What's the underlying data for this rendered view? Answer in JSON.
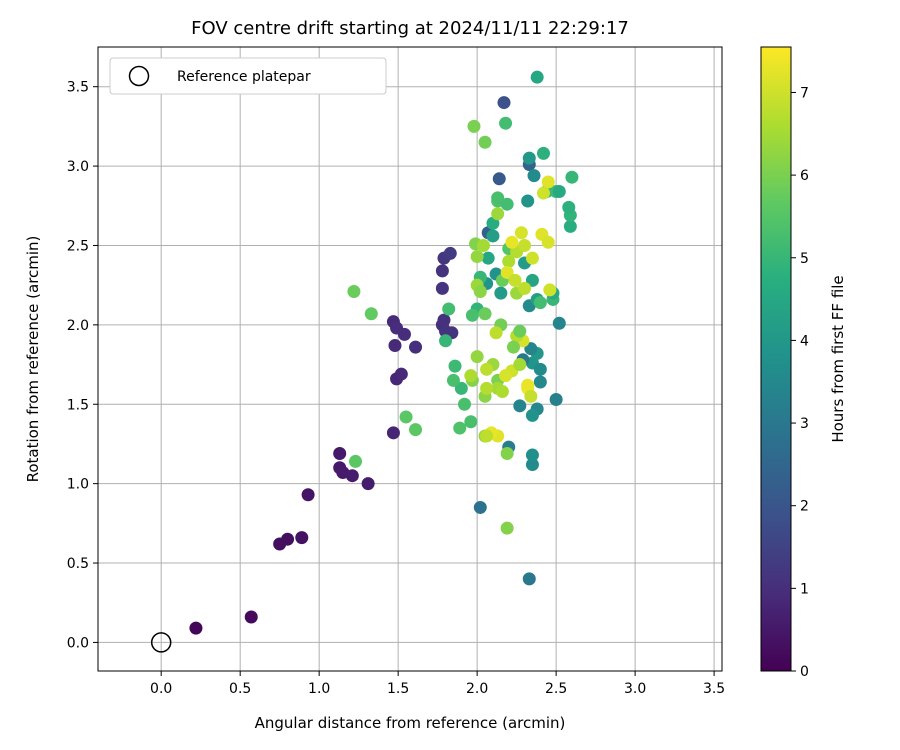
{
  "chart_data": {
    "type": "scatter",
    "title": "FOV centre drift starting at 2024/11/11 22:29:17",
    "xlabel": "Angular distance from reference (arcmin)",
    "ylabel": "Rotation from reference (arcmin)",
    "xlim": [
      -0.4,
      3.55
    ],
    "ylim": [
      -0.18,
      3.75
    ],
    "xticks": [
      "0.0",
      "0.5",
      "1.0",
      "1.5",
      "2.0",
      "2.5",
      "3.0",
      "3.5"
    ],
    "yticks": [
      "0.0",
      "0.5",
      "1.0",
      "1.5",
      "2.0",
      "2.5",
      "3.0",
      "3.5"
    ],
    "grid": true,
    "legend": {
      "placement": "top-left",
      "entries": [
        "Reference platepar"
      ]
    },
    "reference_point": {
      "x": 0.0,
      "y": 0.0
    },
    "colorbar": {
      "label": "Hours from first FF file",
      "colormap": "viridis",
      "range": [
        0,
        7.55
      ],
      "ticks": [
        "0",
        "1",
        "2",
        "3",
        "4",
        "5",
        "6",
        "7"
      ]
    },
    "series": [
      {
        "points": [
          [
            0.22,
            0.09,
            0.1
          ],
          [
            0.57,
            0.16,
            0.2
          ],
          [
            0.75,
            0.62,
            0.3
          ],
          [
            0.8,
            0.65,
            0.3
          ],
          [
            0.89,
            0.66,
            0.35
          ],
          [
            0.93,
            0.93,
            0.4
          ],
          [
            1.13,
            1.19,
            0.5
          ],
          [
            1.13,
            1.1,
            0.5
          ],
          [
            1.15,
            1.07,
            0.55
          ],
          [
            1.21,
            1.05,
            0.6
          ],
          [
            1.31,
            1.0,
            0.6
          ],
          [
            1.47,
            1.32,
            0.8
          ],
          [
            1.49,
            1.66,
            0.8
          ],
          [
            1.52,
            1.69,
            0.85
          ],
          [
            1.48,
            1.87,
            0.9
          ],
          [
            1.47,
            2.02,
            0.9
          ],
          [
            1.49,
            1.98,
            0.95
          ],
          [
            1.54,
            1.94,
            0.95
          ],
          [
            1.61,
            1.86,
            1.0
          ],
          [
            1.78,
            2.0,
            1.0
          ],
          [
            1.79,
            2.03,
            1.05
          ],
          [
            1.8,
            1.96,
            1.1
          ],
          [
            1.84,
            1.95,
            1.1
          ],
          [
            1.78,
            2.23,
            1.15
          ],
          [
            1.78,
            2.34,
            1.1
          ],
          [
            1.79,
            2.42,
            1.2
          ],
          [
            1.83,
            2.45,
            1.3
          ],
          [
            2.17,
            3.4,
            1.9
          ],
          [
            2.14,
            2.92,
            2.1
          ],
          [
            2.07,
            2.58,
            2.3
          ],
          [
            2.33,
            3.01,
            2.4
          ],
          [
            2.02,
            0.85,
            2.8
          ],
          [
            2.33,
            0.4,
            3.0
          ],
          [
            2.2,
            1.23,
            3.2
          ],
          [
            2.35,
            1.12,
            3.6
          ],
          [
            2.35,
            1.18,
            3.7
          ],
          [
            2.38,
            1.47,
            3.5
          ],
          [
            2.35,
            1.43,
            3.8
          ],
          [
            2.27,
            1.49,
            3.4
          ],
          [
            2.5,
            1.53,
            3.3
          ],
          [
            2.4,
            1.64,
            3.5
          ],
          [
            2.35,
            1.76,
            3.9
          ],
          [
            2.38,
            1.82,
            4.0
          ],
          [
            2.4,
            1.72,
            3.6
          ],
          [
            2.34,
            1.85,
            3.4
          ],
          [
            2.29,
            1.78,
            3.0
          ],
          [
            2.52,
            2.01,
            3.4
          ],
          [
            2.33,
            2.12,
            3.6
          ],
          [
            2.38,
            2.16,
            4.2
          ],
          [
            2.35,
            2.28,
            4.4
          ],
          [
            2.3,
            2.39,
            4.1
          ],
          [
            2.32,
            2.78,
            3.9
          ],
          [
            2.36,
            2.94,
            3.6
          ],
          [
            2.33,
            3.05,
            4.0
          ],
          [
            2.38,
            3.56,
            4.5
          ],
          [
            2.42,
            3.08,
            4.8
          ],
          [
            2.44,
            2.84,
            4.9
          ],
          [
            2.5,
            2.84,
            5.1
          ],
          [
            2.52,
            2.84,
            4.6
          ],
          [
            2.59,
            2.62,
            4.7
          ],
          [
            2.59,
            2.69,
            4.9
          ],
          [
            2.58,
            2.74,
            4.8
          ],
          [
            2.6,
            2.93,
            5.0
          ],
          [
            2.48,
            2.16,
            5.0
          ],
          [
            2.48,
            2.2,
            4.6
          ],
          [
            2.4,
            2.14,
            5.2
          ],
          [
            2.18,
            3.27,
            5.2
          ],
          [
            2.1,
            2.56,
            4.2
          ],
          [
            2.1,
            2.64,
            4.7
          ],
          [
            2.07,
            2.42,
            4.5
          ],
          [
            2.06,
            2.26,
            3.9
          ],
          [
            2.12,
            2.32,
            3.8
          ],
          [
            2.15,
            2.2,
            4.1
          ],
          [
            2.02,
            2.3,
            5.0
          ],
          [
            2.0,
            2.1,
            4.9
          ],
          [
            1.97,
            2.06,
            5.3
          ],
          [
            1.82,
            2.1,
            5.2
          ],
          [
            1.8,
            1.9,
            5.0
          ],
          [
            1.86,
            1.74,
            5.1
          ],
          [
            1.9,
            1.6,
            5.0
          ],
          [
            1.85,
            1.65,
            5.3
          ],
          [
            1.92,
            1.5,
            5.3
          ],
          [
            1.89,
            1.35,
            5.4
          ],
          [
            1.96,
            1.39,
            5.3
          ],
          [
            1.55,
            1.42,
            5.6
          ],
          [
            1.61,
            1.34,
            5.6
          ],
          [
            1.23,
            1.14,
            5.6
          ],
          [
            1.22,
            2.21,
            5.8
          ],
          [
            1.33,
            2.07,
            5.7
          ],
          [
            1.98,
            3.25,
            6.0
          ],
          [
            2.05,
            3.15,
            5.9
          ],
          [
            2.13,
            2.78,
            5.4
          ],
          [
            2.13,
            2.8,
            5.3
          ],
          [
            2.19,
            2.76,
            5.2
          ],
          [
            2.2,
            2.48,
            5.5
          ],
          [
            2.16,
            2.28,
            5.8
          ],
          [
            2.19,
            1.19,
            6.1
          ],
          [
            2.19,
            0.72,
            6.1
          ],
          [
            2.05,
            1.3,
            6.3
          ],
          [
            2.05,
            1.55,
            6.2
          ],
          [
            2.1,
            1.75,
            6.4
          ],
          [
            2.13,
            1.65,
            6.0
          ],
          [
            2.13,
            1.6,
            6.5
          ],
          [
            2.15,
            2.0,
            5.9
          ],
          [
            2.05,
            2.07,
            5.8
          ],
          [
            2.0,
            2.25,
            6.4
          ],
          [
            2.02,
            2.21,
            6.2
          ],
          [
            1.99,
            2.51,
            6.1
          ],
          [
            2.0,
            2.43,
            6.3
          ],
          [
            2.04,
            2.5,
            6.5
          ],
          [
            2.13,
            2.7,
            6.4
          ],
          [
            2.2,
            2.4,
            6.6
          ],
          [
            2.25,
            2.46,
            6.7
          ],
          [
            2.25,
            2.2,
            6.4
          ],
          [
            2.3,
            2.23,
            6.8
          ],
          [
            2.35,
            2.42,
            7.0
          ],
          [
            2.28,
            2.58,
            7.1
          ],
          [
            2.3,
            2.5,
            6.9
          ],
          [
            2.41,
            2.57,
            7.2
          ],
          [
            2.45,
            2.52,
            7.1
          ],
          [
            2.46,
            2.22,
            7.0
          ],
          [
            2.45,
            2.9,
            7.2
          ],
          [
            2.42,
            2.83,
            7.0
          ],
          [
            2.29,
            1.9,
            7.1
          ],
          [
            2.25,
            1.93,
            6.7
          ],
          [
            2.22,
            1.71,
            7.0
          ],
          [
            2.18,
            1.68,
            7.1
          ],
          [
            2.13,
            1.3,
            7.2
          ],
          [
            2.09,
            1.32,
            7.3
          ],
          [
            2.06,
            1.3,
            6.8
          ],
          [
            2.22,
            2.52,
            7.3
          ],
          [
            2.19,
            2.33,
            7.2
          ],
          [
            2.24,
            2.28,
            6.9
          ],
          [
            2.12,
            1.95,
            6.8
          ],
          [
            2.06,
            1.6,
            6.7
          ],
          [
            2.16,
            1.58,
            6.6
          ],
          [
            2.27,
            1.75,
            6.5
          ],
          [
            2.32,
            1.6,
            7.4
          ],
          [
            2.32,
            1.62,
            7.3
          ],
          [
            2.34,
            1.55,
            6.9
          ],
          [
            2.0,
            1.8,
            6.3
          ],
          [
            1.97,
            1.65,
            6.1
          ],
          [
            1.96,
            1.68,
            6.6
          ],
          [
            2.06,
            1.72,
            6.8
          ],
          [
            2.23,
            1.86,
            6.0
          ],
          [
            2.27,
            1.96,
            5.8
          ]
        ]
      }
    ]
  }
}
